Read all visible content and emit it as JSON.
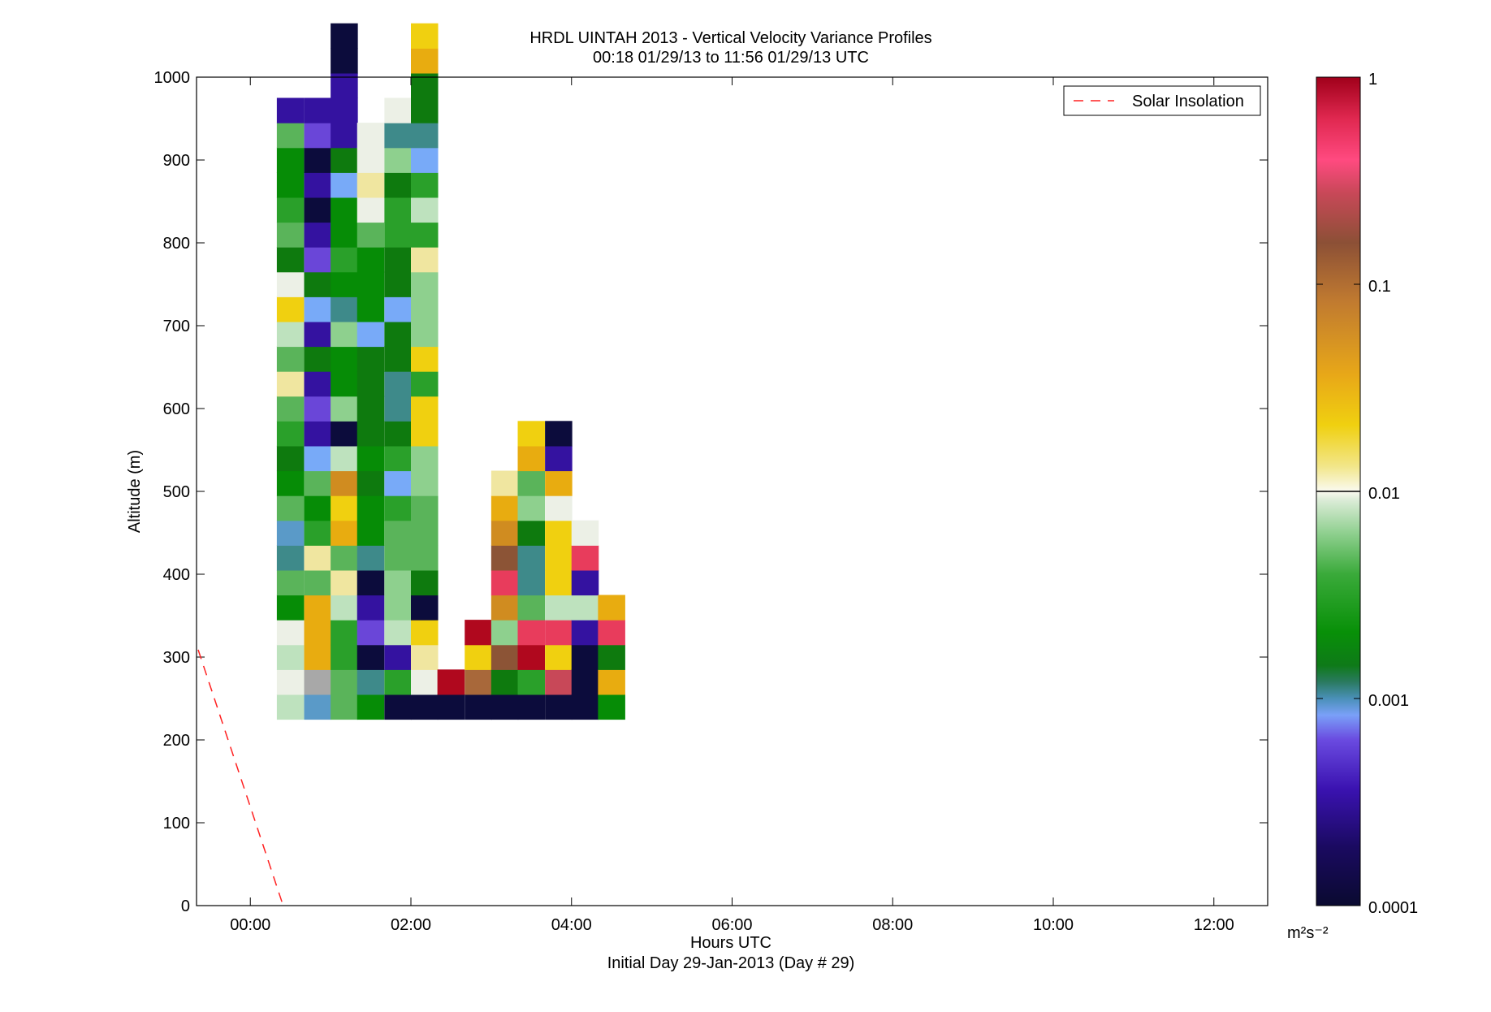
{
  "chart_data": {
    "type": "heatmap",
    "title": "HRDL UINTAH 2013 - Vertical Velocity Variance Profiles",
    "subtitle": "00:18 01/29/13 to 11:56 01/29/13  UTC",
    "xlabel": "Hours UTC",
    "xlabel2": "Initial Day 29-Jan-2013 (Day # 29)",
    "ylabel": "Altitude (m)",
    "x_ticks": [
      "00:00",
      "02:00",
      "04:00",
      "06:00",
      "08:00",
      "10:00",
      "12:00"
    ],
    "y_ticks": [
      "0",
      "100",
      "200",
      "300",
      "400",
      "500",
      "600",
      "700",
      "800",
      "900",
      "1000"
    ],
    "xlim_hours": [
      -0.67,
      12.67
    ],
    "ylim": [
      0,
      1000
    ],
    "legend": {
      "label": "Solar Insolation",
      "placement": "top-right"
    },
    "colorbar": {
      "scale": "log",
      "range": [
        0.0001,
        1
      ],
      "tick_labels": [
        "1",
        "0.1",
        "0.01",
        "0.001",
        "0.0001"
      ],
      "unit": "m²s⁻²"
    },
    "cell": {
      "hours": 0.333,
      "altitude_m": 30
    },
    "palette": {
      "K": "#0c0c3c",
      "I": "#3412a0",
      "V": "#6a46d8",
      "B": "#78aaf8",
      "T": "#3e8a8a",
      "Q": "#5a9ac8",
      "G": "#068c06",
      "D": "#0e7a0e",
      "E": "#2aa02a",
      "M": "#5ab45a",
      "L": "#8ed08e",
      "P": "#bee2be",
      "W": "#ecf0e6",
      "S": "#f0e6a0",
      "Y": "#f0d010",
      "O": "#e8ac10",
      "H": "#d08c20",
      "R": "#a8683a",
      "N": "#8c5436",
      "C": "#a84848",
      "X": "#c84858",
      "Z": "#e83c5c",
      "U": "#b0081e",
      "A": "#a8a8a8"
    },
    "columns": [
      {
        "t": 0.33,
        "a0": 225,
        "c": "PWPWGMTQMGDEMSMPYWDMEGGMI"
      },
      {
        "t": 0.67,
        "a0": 225,
        "c": "QAOOOMSEGMBIVIDIBDVIKIKVI"
      },
      {
        "t": 1.0,
        "a0": 225,
        "c": "MMEEPSMOYHPKLGGLTGEGGBDIIIKK"
      },
      {
        "t": 1.33,
        "a0": 225,
        "c": "GTKVIKTGGDGDDDDBGGGMWSWW"
      },
      {
        "t": 1.67,
        "a0": 225,
        "c": "KEIPLLMMEBEDTTDDBDDEEDLTW"
      },
      {
        "t": 2.0,
        "a0": 225,
        "c": "KWSYKDMMMLLYYEYLLLSEPEBTDDOY"
      },
      {
        "t": 2.33,
        "a0": 225,
        "c": "KU"
      },
      {
        "t": 2.67,
        "a0": 225,
        "c": "KRYU"
      },
      {
        "t": 3.0,
        "a0": 225,
        "c": "KDNLHZNHOS"
      },
      {
        "t": 3.33,
        "a0": 225,
        "c": "KEUZMTTDLMOY"
      },
      {
        "t": 3.67,
        "a0": 225,
        "c": "KXYZPYYYWOIK"
      },
      {
        "t": 4.0,
        "a0": 225,
        "c": "KKKIPIZW"
      },
      {
        "t": 4.33,
        "a0": 225,
        "c": "GODZO"
      }
    ]
  }
}
